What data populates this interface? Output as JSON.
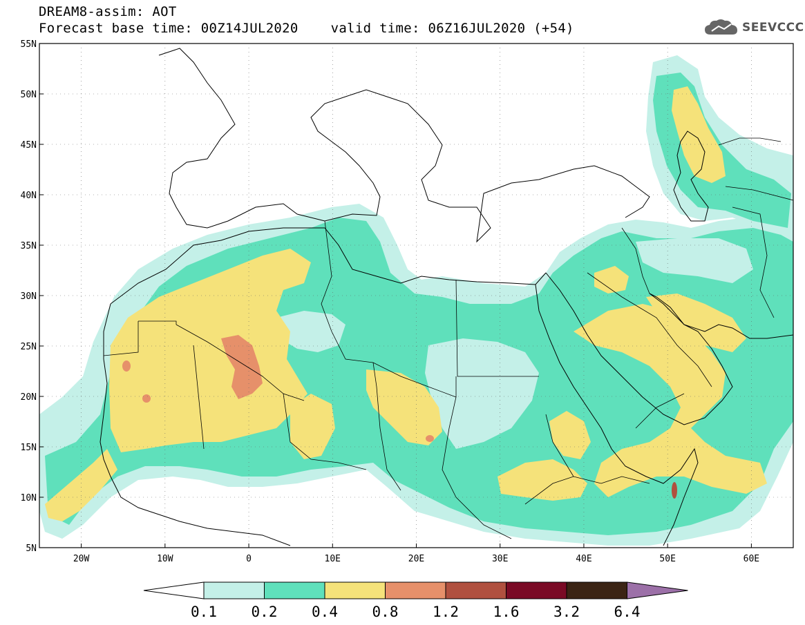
{
  "header": {
    "title_line1": "DREAM8-assim: AOT",
    "forecast_base": "Forecast base time: 00Z14JUL2020",
    "valid_time": "valid time: 06Z16JUL2020 (+54)",
    "logo_text": "SEEVCCC"
  },
  "map": {
    "lon_range": [
      -25,
      65
    ],
    "lat_range": [
      5,
      55
    ],
    "lon_ticks": [
      "20W",
      "10W",
      "0",
      "10E",
      "20E",
      "30E",
      "40E",
      "50E",
      "60E"
    ],
    "lat_ticks": [
      "55N",
      "50N",
      "45N",
      "40N",
      "35N",
      "30N",
      "25N",
      "20N",
      "15N",
      "10N",
      "5N"
    ]
  },
  "legend": {
    "levels": [
      "0.1",
      "0.2",
      "0.4",
      "0.8",
      "1.2",
      "1.6",
      "3.2",
      "6.4"
    ],
    "colors": [
      "#ffffff",
      "#c4f0e8",
      "#5fe0bb",
      "#f5e27a",
      "#e6906a",
      "#b0503f",
      "#7a0a25",
      "#3b2414",
      "#9c70a8"
    ]
  }
}
